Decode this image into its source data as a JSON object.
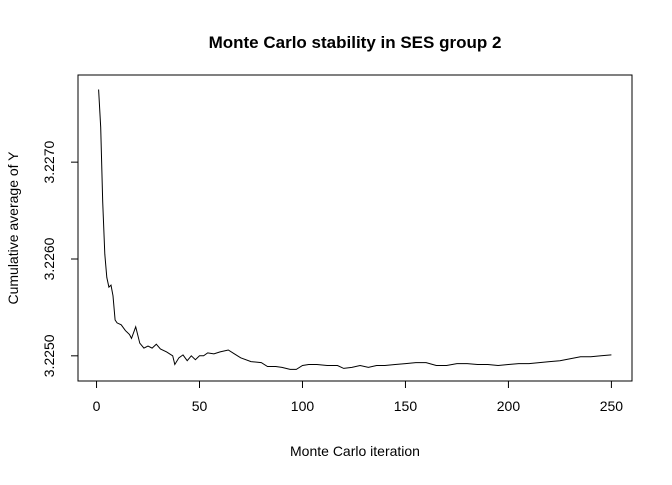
{
  "chart_data": {
    "type": "line",
    "title": "Monte Carlo stability in SES group 2",
    "xlabel": "Monte Carlo iteration",
    "ylabel": "Cumulative average of Y",
    "xlim": [
      -9,
      260
    ],
    "ylim": [
      3.22474,
      3.2279
    ],
    "xticks": [
      0,
      50,
      100,
      150,
      200,
      250
    ],
    "yticks": [
      3.225,
      3.226,
      3.227
    ],
    "ytick_labels": [
      "3.2250",
      "3.2260",
      "3.2270"
    ],
    "grid": false,
    "line_color": "#000000",
    "x": [
      1,
      2,
      3,
      4,
      5,
      6,
      7,
      8,
      9,
      10,
      12,
      14,
      16,
      17,
      19,
      21,
      23,
      25,
      27,
      29,
      31,
      34,
      37,
      38,
      40,
      42,
      44,
      46,
      48,
      50,
      52,
      54,
      57,
      60,
      64,
      67,
      70,
      75,
      80,
      83,
      87,
      90,
      94,
      97,
      100,
      103,
      107,
      112,
      117,
      120,
      124,
      128,
      132,
      136,
      140,
      145,
      150,
      155,
      160,
      165,
      170,
      175,
      180,
      185,
      190,
      195,
      200,
      205,
      210,
      215,
      220,
      225,
      230,
      235,
      240,
      245,
      250
    ],
    "y": [
      3.22775,
      3.22736,
      3.22659,
      3.22605,
      3.22581,
      3.22571,
      3.22573,
      3.22562,
      3.22537,
      3.22534,
      3.22532,
      3.22526,
      3.22522,
      3.22518,
      3.2253,
      3.22513,
      3.22508,
      3.2251,
      3.22508,
      3.22512,
      3.22507,
      3.22504,
      3.225,
      3.22491,
      3.22498,
      3.22501,
      3.22495,
      3.225,
      3.22496,
      3.225,
      3.225,
      3.22503,
      3.22502,
      3.22504,
      3.22506,
      3.22502,
      3.22498,
      3.22494,
      3.22493,
      3.22489,
      3.22489,
      3.22488,
      3.22486,
      3.22486,
      3.2249,
      3.22491,
      3.22491,
      3.2249,
      3.2249,
      3.22487,
      3.22488,
      3.2249,
      3.22488,
      3.2249,
      3.2249,
      3.22491,
      3.22492,
      3.22493,
      3.22493,
      3.2249,
      3.2249,
      3.22492,
      3.22492,
      3.22491,
      3.22491,
      3.2249,
      3.22491,
      3.22492,
      3.22492,
      3.22493,
      3.22494,
      3.22495,
      3.22497,
      3.22499,
      3.22499,
      3.225,
      3.22501
    ]
  }
}
